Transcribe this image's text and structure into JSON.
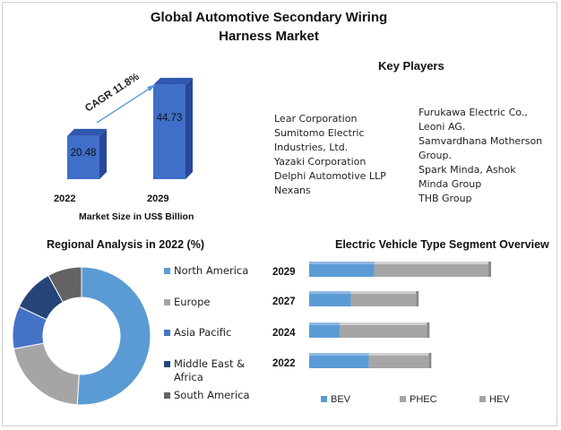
{
  "title_line1": "Global Automotive Secondary Wiring",
  "title_line2": "Harness Market",
  "key_players": {
    "heading": "Key Players",
    "col1": [
      "Lear Corporation",
      "Sumitomo Electric",
      "Industries, Ltd.",
      "Yazaki Corporation",
      "Delphi Automotive LLP",
      "Nexans"
    ],
    "col2": [
      "Furukawa Electric Co.,",
      "Leoni AG.",
      "Samvardhana Motherson",
      "Group.",
      "Spark Minda, Ashok",
      "Minda Group",
      "THB Group"
    ]
  },
  "market_size": {
    "cagr_label": "CAGR 11.8%",
    "caption": "Market Size in US$ Billion"
  },
  "regional": {
    "heading": "Regional Analysis in 2022 (%)"
  },
  "ev_segment": {
    "heading": "Electric Vehicle Type Segment Overview"
  },
  "colors": {
    "bar_blue": "#3f6fc9",
    "bar_top": "#2f58b0",
    "bar_side": "#27479a",
    "north_america": "#5b9bd5",
    "europe": "#a5a5a5",
    "asia_pacific": "#4472c4",
    "middle_east_africa": "#264478",
    "south_america": "#636363",
    "bev": "#5b9bd5",
    "phec": "#a5a5a5",
    "hev": "#a5a5a5",
    "arrow": "#5b9bd5"
  },
  "chart_data": [
    {
      "type": "bar",
      "title": "",
      "xlabel": "Market Size in US$ Billion",
      "categories": [
        "2022",
        "2029"
      ],
      "values": [
        20.48,
        44.73
      ],
      "annotation": "CAGR 11.8%"
    },
    {
      "type": "pie",
      "title": "Regional Analysis in 2022 (%)",
      "categories": [
        "North America",
        "Europe",
        "Asia Pacific",
        "Middle East & Africa",
        "South America"
      ],
      "values": [
        51,
        21,
        10,
        10,
        8
      ],
      "legend": "right"
    },
    {
      "type": "bar",
      "orientation": "horizontal",
      "stacked": true,
      "title": "Electric Vehicle Type Segment Overview",
      "categories": [
        "2029",
        "2027",
        "2024",
        "2022"
      ],
      "series": [
        {
          "name": "BEV",
          "values": [
            36,
            23,
            17,
            33
          ]
        },
        {
          "name": "PHEC",
          "values": [
            63,
            36,
            48,
            33
          ]
        },
        {
          "name": "HEV",
          "values": [
            0,
            0,
            0,
            0
          ]
        }
      ],
      "legend": "bottom"
    }
  ]
}
